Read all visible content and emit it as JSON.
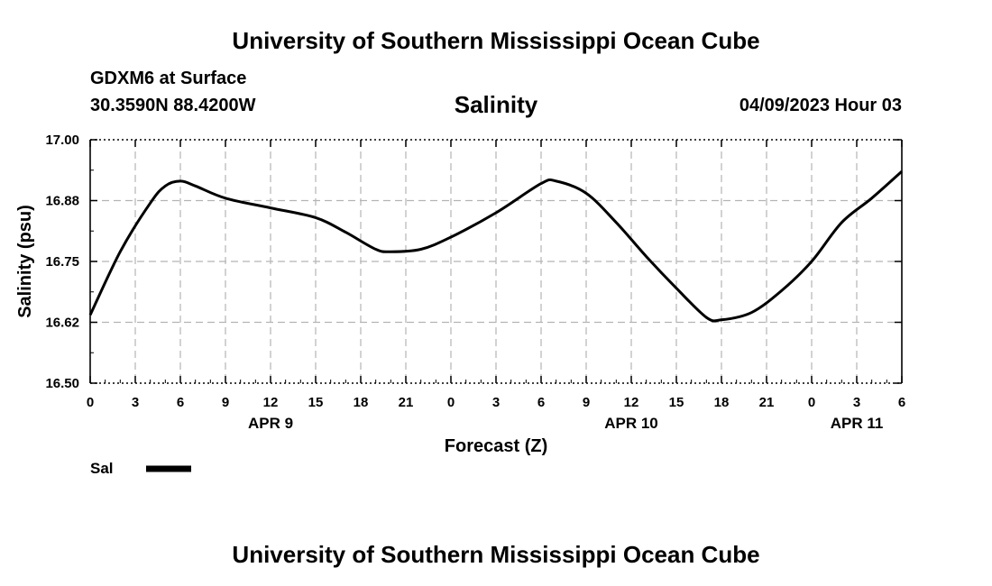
{
  "header": {
    "title": "University of Southern Mississippi Ocean Cube",
    "station": "GDXM6 at Surface",
    "coords": "30.3590N  88.4200W",
    "datetime": "04/09/2023 Hour 03"
  },
  "footer": {
    "title": "University of Southern Mississippi Ocean Cube"
  },
  "chart_data": {
    "type": "line",
    "title": "Salinity",
    "xlabel": "Forecast (Z)",
    "ylabel": "Salinity (psu)",
    "ylim": [
      16.5,
      17.0
    ],
    "yticks": [
      "16.50",
      "16.62",
      "16.75",
      "16.88",
      "17.00"
    ],
    "xlim": [
      0,
      54
    ],
    "x_tick_labels": [
      "0",
      "3",
      "6",
      "9",
      "12",
      "15",
      "18",
      "21",
      "0",
      "3",
      "6",
      "9",
      "12",
      "15",
      "18",
      "21",
      "0",
      "3",
      "6"
    ],
    "date_labels": [
      {
        "label": "APR 9",
        "hour": 12
      },
      {
        "label": "APR 10",
        "hour": 36
      },
      {
        "label": "APR 11",
        "hour": 51
      }
    ],
    "grid": true,
    "line_color": "#000000",
    "series": [
      {
        "name": "Sal",
        "x": [
          0,
          2,
          4,
          5,
          6,
          7,
          9,
          12,
          15,
          17,
          19,
          20,
          22,
          24,
          27,
          30,
          31,
          33,
          35,
          37,
          39,
          41,
          42,
          44,
          46,
          48,
          50,
          52,
          54
        ],
        "y": [
          16.64,
          16.77,
          16.87,
          16.905,
          16.915,
          16.905,
          16.88,
          16.86,
          16.84,
          16.81,
          16.775,
          16.77,
          16.775,
          16.8,
          16.85,
          16.91,
          16.915,
          16.89,
          16.83,
          16.76,
          16.695,
          16.635,
          16.63,
          16.645,
          16.69,
          16.75,
          16.83,
          16.88,
          16.935
        ]
      }
    ],
    "legend": {
      "label": "Sal",
      "placement": "bottom-left"
    }
  }
}
